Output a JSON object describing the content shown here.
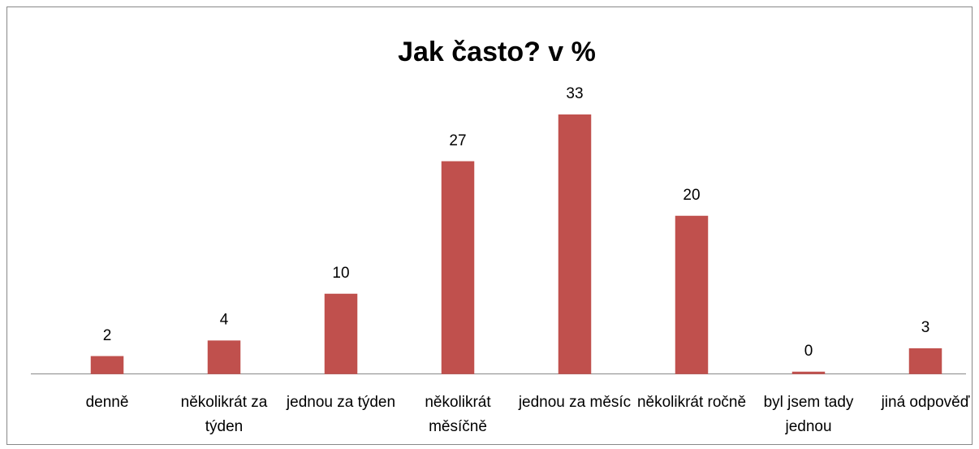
{
  "chart_data": {
    "type": "bar",
    "title": "Jak často?  v %",
    "categories": [
      "denně",
      "několikrát za týden",
      "jednou za týden",
      "několikrát měsíčně",
      "jednou za měsíc",
      "několikrát ročně",
      "byl jsem tady jednou",
      "jiná odpověď"
    ],
    "values": [
      2,
      4,
      10,
      27,
      33,
      20,
      0,
      3
    ],
    "color": "#c0504d"
  }
}
